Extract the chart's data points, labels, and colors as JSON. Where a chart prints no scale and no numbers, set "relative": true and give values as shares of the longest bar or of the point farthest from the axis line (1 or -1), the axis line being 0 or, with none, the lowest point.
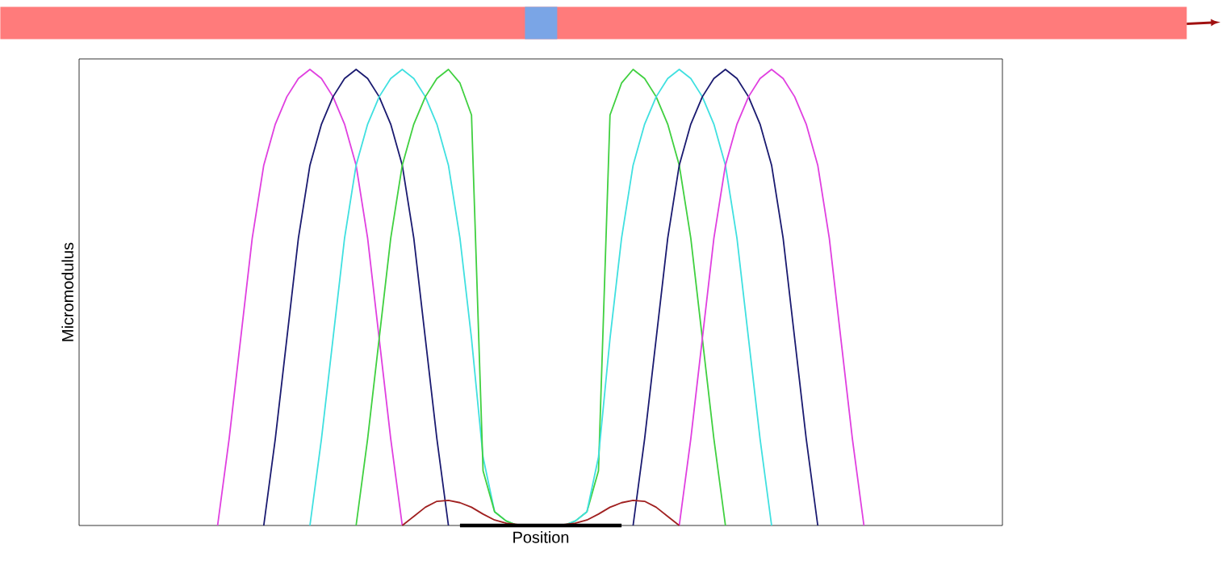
{
  "chart_data": {
    "type": "line",
    "relative": true,
    "xlabel": "Position",
    "ylabel": "Micromodulus",
    "categories": [
      null,
      null,
      null,
      null,
      null,
      null,
      null,
      null,
      null,
      null,
      null,
      null,
      null,
      null,
      null,
      null,
      null,
      null,
      null,
      null,
      null,
      null,
      null,
      null,
      null,
      null,
      null,
      null,
      null,
      null,
      null,
      null,
      null,
      null,
      null,
      null,
      null,
      null,
      null,
      null,
      null,
      null,
      null,
      null,
      null,
      null,
      null,
      null,
      null,
      null,
      null,
      null,
      null,
      null,
      null,
      null,
      null,
      null,
      null,
      null,
      null,
      null,
      null,
      null,
      null,
      null,
      null,
      null,
      null,
      null,
      null,
      null,
      null,
      null,
      null,
      null,
      null,
      null,
      null,
      null,
      null
    ],
    "series": [
      {
        "color": "#e040e0",
        "values": [
          null,
          null,
          null,
          null,
          null,
          null,
          null,
          null,
          null,
          null,
          null,
          null,
          0,
          0.19,
          0.41,
          0.63,
          0.79,
          0.88,
          0.94,
          0.98,
          1,
          0.98,
          0.94,
          0.88,
          0.79,
          0.63,
          0.41,
          0.19,
          0,
          null,
          null,
          null,
          null,
          null,
          null,
          null,
          null,
          null,
          null,
          null,
          null,
          null,
          null,
          null,
          null,
          null,
          null,
          null,
          null,
          null,
          null,
          null,
          null,
          null,
          null,
          null,
          null,
          null,
          null,
          null,
          null,
          null,
          null,
          null,
          null,
          null,
          null,
          null,
          null,
          null,
          null,
          null,
          null,
          null,
          null,
          null,
          null,
          null,
          null,
          null,
          null
        ]
      },
      {
        "color": "#1a1a70",
        "values": [
          null,
          null,
          null,
          null,
          null,
          null,
          null,
          null,
          null,
          null,
          null,
          null,
          null,
          null,
          null,
          null,
          0,
          0.19,
          0.41,
          0.63,
          0.79,
          0.88,
          0.94,
          0.98,
          1,
          0.98,
          0.94,
          0.88,
          0.79,
          0.63,
          0.41,
          0.19,
          0,
          null,
          null,
          null,
          null,
          null,
          null,
          null,
          null,
          null,
          null,
          null,
          null,
          null,
          null,
          null,
          null,
          null,
          null,
          null,
          null,
          null,
          null,
          null,
          null,
          null,
          null,
          null,
          null,
          null,
          null,
          null,
          null,
          null,
          null,
          null,
          null,
          null,
          null,
          null,
          null,
          null,
          null,
          null,
          null,
          null,
          null,
          null,
          null
        ]
      },
      {
        "color": "#40e0e0",
        "values": [
          null,
          null,
          null,
          null,
          null,
          null,
          null,
          null,
          null,
          null,
          null,
          null,
          null,
          null,
          null,
          null,
          null,
          null,
          null,
          null,
          0,
          0.19,
          0.41,
          0.63,
          0.79,
          0.88,
          0.94,
          0.98,
          1,
          0.98,
          0.94,
          0.88,
          0.79,
          0.63,
          0.41,
          0.15,
          0.03,
          0.01,
          0,
          null,
          null,
          null,
          null,
          null,
          null,
          null,
          null,
          null,
          null,
          null,
          null,
          null,
          null,
          null,
          null,
          null,
          null,
          null,
          null,
          null,
          null,
          null,
          null,
          null,
          null,
          null,
          null,
          null,
          null,
          null,
          null,
          null,
          null,
          null,
          null,
          null,
          null,
          null,
          null,
          null,
          null
        ]
      },
      {
        "color": "#40d040",
        "values": [
          null,
          null,
          null,
          null,
          null,
          null,
          null,
          null,
          null,
          null,
          null,
          null,
          null,
          null,
          null,
          null,
          null,
          null,
          null,
          null,
          null,
          null,
          null,
          null,
          0,
          0.19,
          0.41,
          0.63,
          0.79,
          0.88,
          0.94,
          0.98,
          1,
          0.97,
          0.9,
          0.12,
          0.03,
          0.01,
          0,
          null,
          null,
          null,
          null,
          null,
          null,
          null,
          null,
          null,
          null,
          null,
          null,
          null,
          null,
          null,
          null,
          null,
          null,
          null,
          null,
          null,
          null,
          null,
          null,
          null,
          null,
          null,
          null,
          null,
          null,
          null,
          null,
          null,
          null,
          null,
          null,
          null,
          null,
          null,
          null,
          null,
          null
        ]
      },
      {
        "color": "#40d040",
        "values": [
          null,
          null,
          null,
          null,
          null,
          null,
          null,
          null,
          null,
          null,
          null,
          null,
          null,
          null,
          null,
          null,
          null,
          null,
          null,
          null,
          null,
          null,
          null,
          null,
          null,
          null,
          null,
          null,
          null,
          null,
          null,
          null,
          null,
          null,
          null,
          null,
          null,
          null,
          null,
          null,
          null,
          null,
          0,
          0.01,
          0.03,
          0.12,
          0.9,
          0.97,
          1,
          0.98,
          0.94,
          0.88,
          0.79,
          0.63,
          0.41,
          0.19,
          0,
          null,
          null,
          null,
          null,
          null,
          null,
          null,
          null,
          null,
          null,
          null,
          null,
          null,
          null,
          null,
          null,
          null,
          null,
          null,
          null,
          null,
          null,
          null,
          null
        ]
      },
      {
        "color": "#40e0e0",
        "values": [
          null,
          null,
          null,
          null,
          null,
          null,
          null,
          null,
          null,
          null,
          null,
          null,
          null,
          null,
          null,
          null,
          null,
          null,
          null,
          null,
          null,
          null,
          null,
          null,
          null,
          null,
          null,
          null,
          null,
          null,
          null,
          null,
          null,
          null,
          null,
          null,
          null,
          null,
          null,
          null,
          null,
          null,
          0,
          0.01,
          0.03,
          0.15,
          0.41,
          0.63,
          0.79,
          0.88,
          0.94,
          0.98,
          1,
          0.98,
          0.94,
          0.88,
          0.79,
          0.63,
          0.41,
          0.19,
          0,
          null,
          null,
          null,
          null,
          null,
          null,
          null,
          null,
          null,
          null,
          null,
          null,
          null,
          null,
          null,
          null,
          null,
          null,
          null,
          null
        ]
      },
      {
        "color": "#1a1a70",
        "values": [
          null,
          null,
          null,
          null,
          null,
          null,
          null,
          null,
          null,
          null,
          null,
          null,
          null,
          null,
          null,
          null,
          null,
          null,
          null,
          null,
          null,
          null,
          null,
          null,
          null,
          null,
          null,
          null,
          null,
          null,
          null,
          null,
          null,
          null,
          null,
          null,
          null,
          null,
          null,
          null,
          null,
          null,
          null,
          null,
          null,
          null,
          null,
          null,
          0,
          0.19,
          0.41,
          0.63,
          0.79,
          0.88,
          0.94,
          0.98,
          1,
          0.98,
          0.94,
          0.88,
          0.79,
          0.63,
          0.41,
          0.19,
          0,
          null,
          null,
          null,
          null,
          null,
          null,
          null,
          null,
          null,
          null,
          null,
          null,
          null,
          null,
          null,
          null
        ]
      },
      {
        "color": "#e040e0",
        "values": [
          null,
          null,
          null,
          null,
          null,
          null,
          null,
          null,
          null,
          null,
          null,
          null,
          null,
          null,
          null,
          null,
          null,
          null,
          null,
          null,
          null,
          null,
          null,
          null,
          null,
          null,
          null,
          null,
          null,
          null,
          null,
          null,
          null,
          null,
          null,
          null,
          null,
          null,
          null,
          null,
          null,
          null,
          null,
          null,
          null,
          null,
          null,
          null,
          null,
          null,
          null,
          null,
          0,
          0.19,
          0.41,
          0.63,
          0.79,
          0.88,
          0.94,
          0.98,
          1,
          0.98,
          0.94,
          0.88,
          0.79,
          0.63,
          0.41,
          0.19,
          0,
          null,
          null,
          null,
          null,
          null,
          null,
          null,
          null,
          null,
          null,
          null,
          null
        ]
      },
      {
        "color": "#a02020",
        "values": [
          null,
          null,
          null,
          null,
          null,
          null,
          null,
          null,
          null,
          null,
          null,
          null,
          null,
          null,
          null,
          null,
          null,
          null,
          null,
          null,
          null,
          null,
          null,
          null,
          null,
          null,
          null,
          null,
          0,
          0.02,
          0.04,
          0.053,
          0.055,
          0.05,
          0.04,
          0.025,
          0.012,
          0.005,
          0.002,
          0,
          0,
          0,
          0.002,
          0.005,
          0.012,
          0.025,
          0.04,
          0.05,
          0.055,
          0.053,
          0.04,
          0.02,
          0,
          null,
          null,
          null,
          null,
          null,
          null,
          null,
          null,
          null,
          null,
          null,
          null,
          null,
          null,
          null,
          null,
          null,
          null,
          null,
          null,
          null,
          null,
          null,
          null,
          null,
          null,
          null,
          null
        ]
      },
      {
        "color": "#000000",
        "values": [
          null,
          null,
          null,
          null,
          null,
          null,
          null,
          null,
          null,
          null,
          null,
          null,
          null,
          null,
          null,
          null,
          null,
          null,
          null,
          null,
          null,
          null,
          null,
          null,
          null,
          null,
          null,
          null,
          null,
          null,
          null,
          null,
          null,
          0,
          0,
          0,
          0,
          0,
          0,
          0,
          0,
          0,
          0,
          0,
          0,
          0,
          0,
          0,
          null,
          null,
          null,
          null,
          null,
          null,
          null,
          null,
          null,
          null,
          null,
          null,
          null,
          null,
          null,
          null,
          null,
          null,
          null,
          null,
          null,
          null,
          null,
          null,
          null,
          null,
          null,
          null,
          null,
          null,
          null,
          null,
          null
        ]
      }
    ]
  }
}
